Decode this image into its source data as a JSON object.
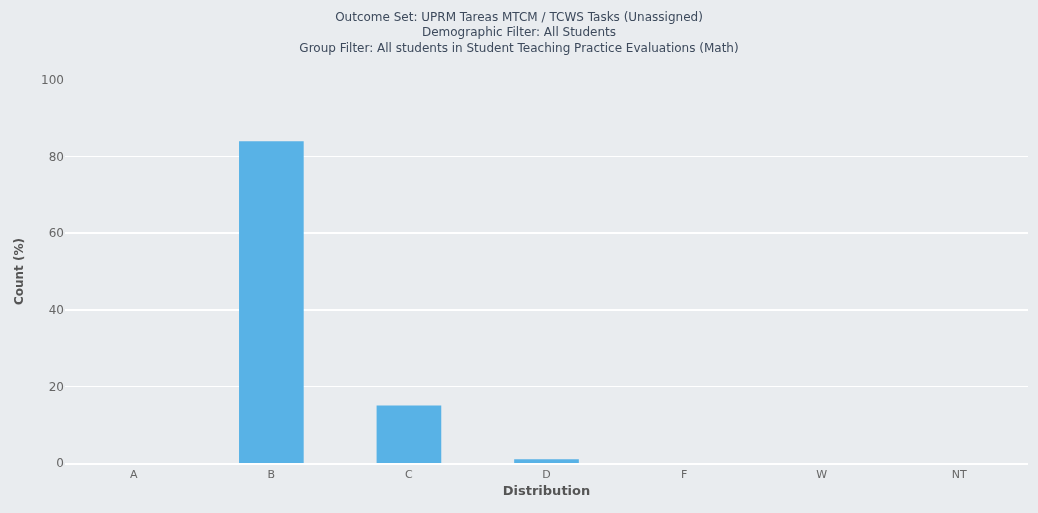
{
  "chart_data": {
    "type": "bar",
    "title": "Outcome Set: UPRM Tareas MTCM / TCWS Tasks (Unassigned)\nDemographic Filter: All Students\nGroup Filter: All students in Student Teaching Practice Evaluations (Math)",
    "xlabel": "Distribution",
    "ylabel": "Count (%)",
    "categories": [
      "A",
      "B",
      "C",
      "D",
      "F",
      "W",
      "NT"
    ],
    "values": [
      0,
      84,
      15,
      1,
      0,
      0,
      0
    ],
    "color": "#58b2e6",
    "ylim": [
      0,
      100
    ],
    "yticks": [
      0,
      20,
      40,
      60,
      80,
      100
    ],
    "grid": "y"
  }
}
